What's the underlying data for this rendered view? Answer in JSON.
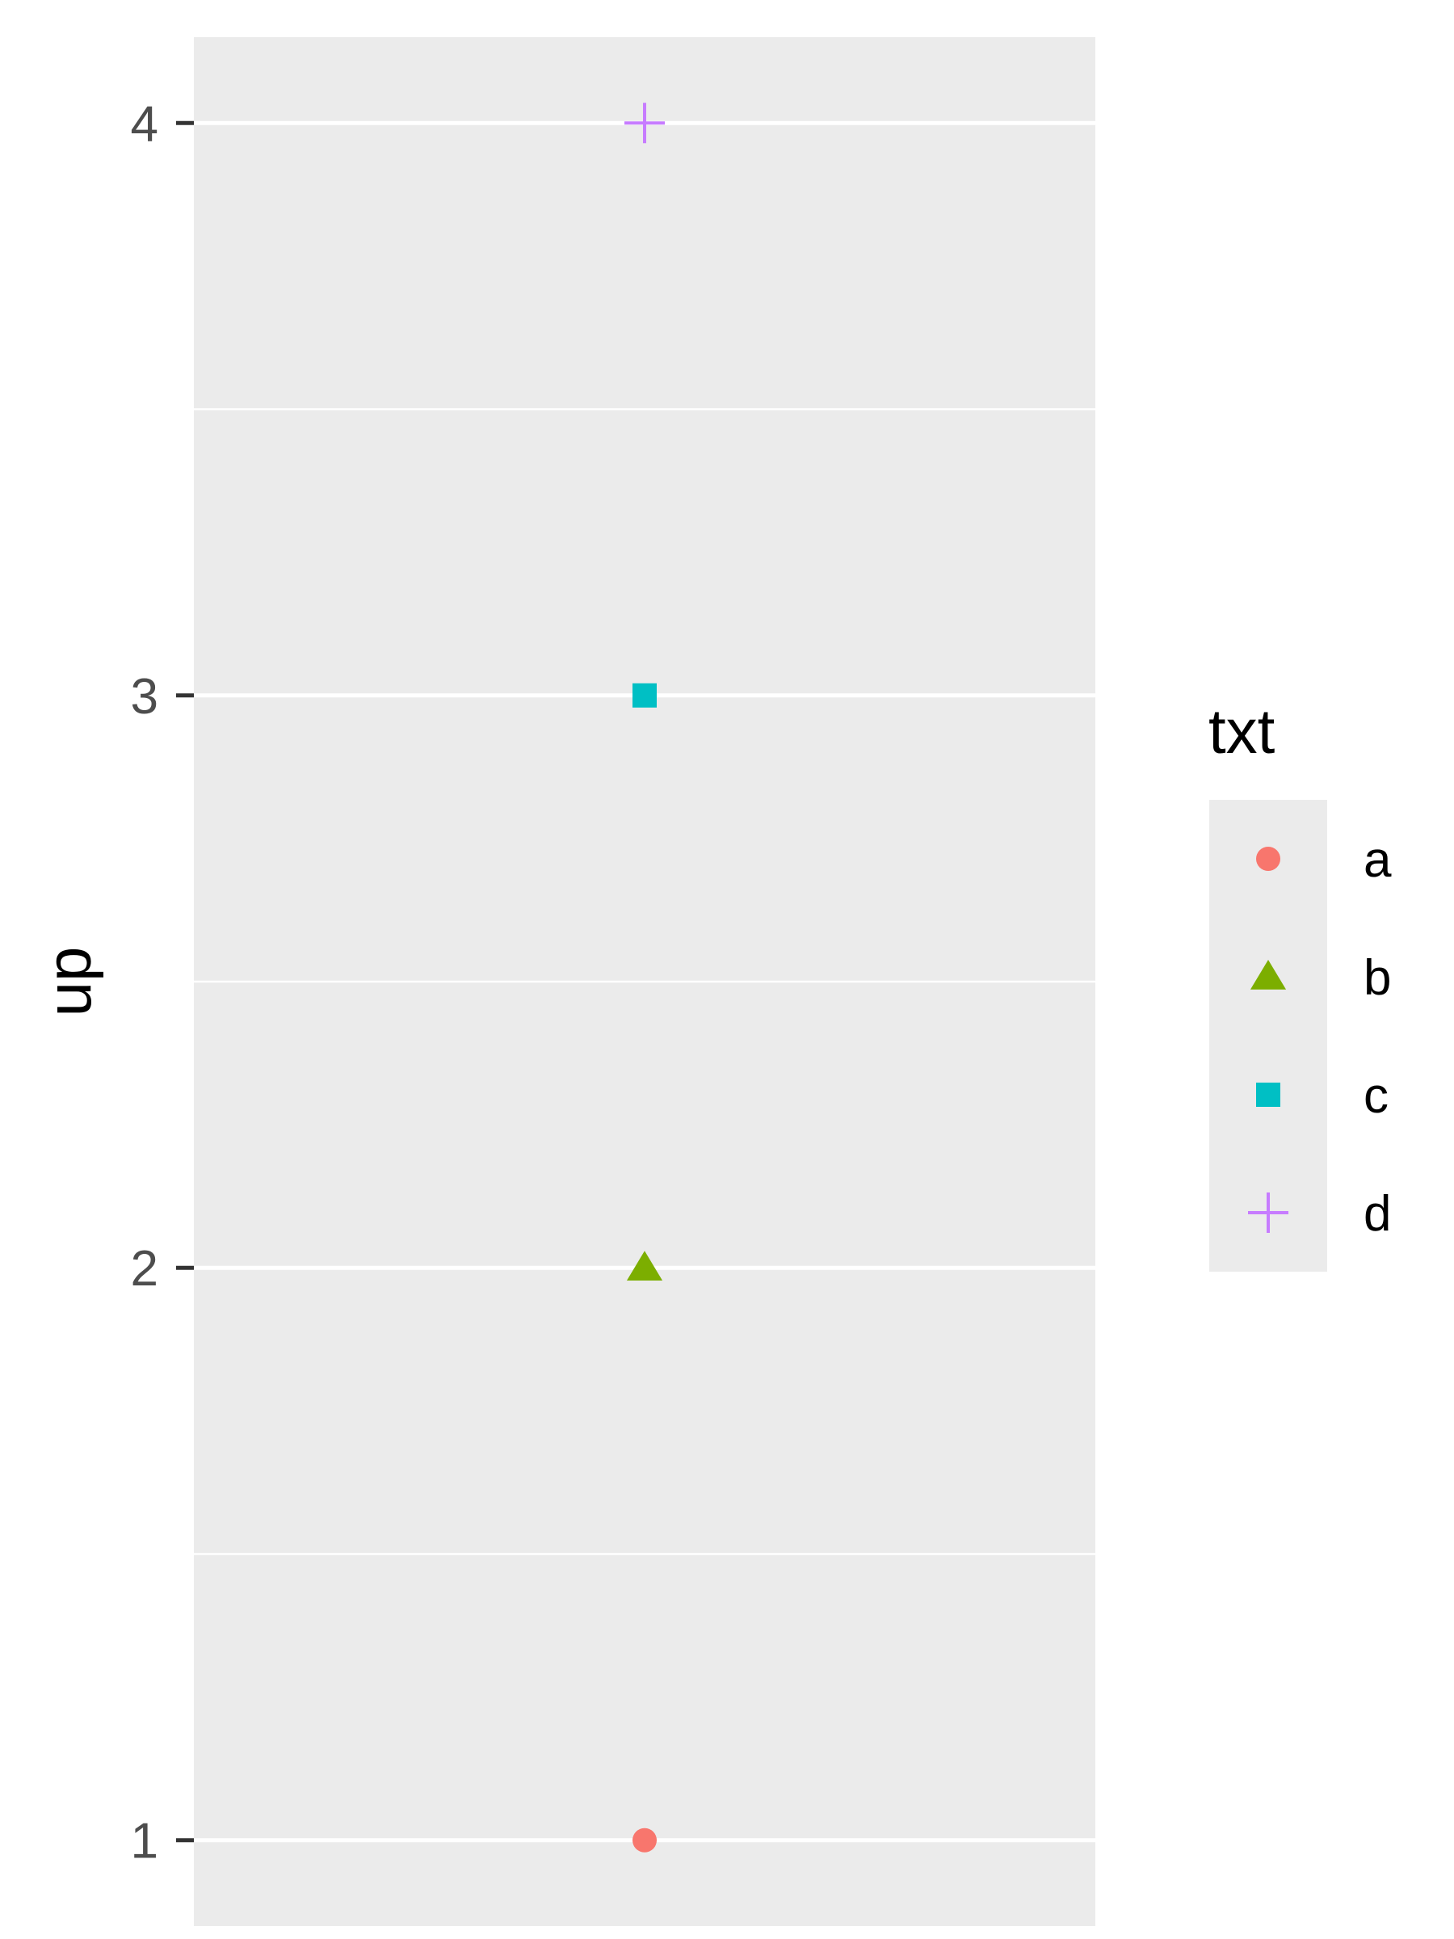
{
  "chart_data": {
    "type": "scatter",
    "title": "",
    "xlabel": "",
    "ylabel": "up",
    "ylim": [
      0.85,
      4.15
    ],
    "y_ticks": [
      1,
      2,
      3,
      4
    ],
    "y_tick_labels": [
      "1",
      "2",
      "3",
      "4"
    ],
    "x_ticks": [],
    "grid": true,
    "legend": {
      "title": "txt",
      "position": "right"
    },
    "points": [
      {
        "txt": "a",
        "up": 1,
        "shape": "circle",
        "color": "#F8766D"
      },
      {
        "txt": "b",
        "up": 2,
        "shape": "triangle",
        "color": "#7CAE00"
      },
      {
        "txt": "c",
        "up": 3,
        "shape": "square",
        "color": "#00BFC4"
      },
      {
        "txt": "d",
        "up": 4,
        "shape": "plus",
        "color": "#C77CFF"
      }
    ],
    "colors": {
      "panel_background": "#EBEBEB",
      "grid_line": "#FFFFFF",
      "tick_label": "#4D4D4D",
      "tick_mark": "#333333"
    }
  }
}
